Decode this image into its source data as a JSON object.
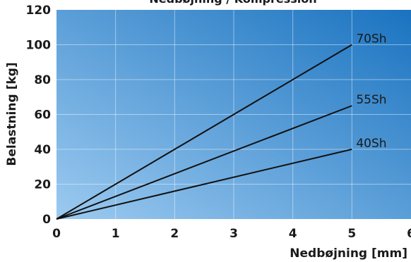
{
  "chart_data": {
    "type": "line",
    "title": "Nedbøjning / Kompression",
    "xlabel": "Nedbøjning [mm]",
    "ylabel": "Belastning [kg]",
    "xlim": [
      0,
      6
    ],
    "ylim": [
      0,
      120
    ],
    "x_ticks": [
      "0",
      "1",
      "2",
      "3",
      "4",
      "5",
      "6"
    ],
    "y_ticks": [
      "0",
      "20",
      "40",
      "60",
      "80",
      "100",
      "120"
    ],
    "grid": true,
    "series": [
      {
        "name": "70Sh",
        "x": [
          0,
          5
        ],
        "y": [
          0,
          100
        ]
      },
      {
        "name": "55Sh",
        "x": [
          0,
          5
        ],
        "y": [
          0,
          65
        ]
      },
      {
        "name": "40Sh",
        "x": [
          0,
          5
        ],
        "y": [
          0,
          40
        ]
      }
    ],
    "colors": {
      "plot_bg_light": "#9ccaf0",
      "plot_bg_dark": "#1a73c0",
      "line": "#111111"
    }
  }
}
